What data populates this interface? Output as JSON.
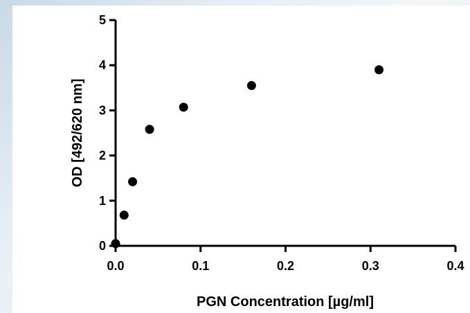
{
  "chart_data": {
    "type": "scatter",
    "title": "",
    "xlabel": "PGN Concentration [µg/ml]",
    "ylabel": "OD [492/620 nm]",
    "xlim": [
      0,
      0.4
    ],
    "ylim": [
      0,
      5
    ],
    "xticks": [
      "0.0",
      "0.1",
      "0.2",
      "0.3",
      "0.4"
    ],
    "yticks": [
      "0",
      "1",
      "2",
      "3",
      "4",
      "5"
    ],
    "grid": false,
    "series": [
      {
        "x": [
          0,
          0.01,
          0.02,
          0.04,
          0.08,
          0.16,
          0.31
        ],
        "y": [
          0.05,
          0.68,
          1.42,
          2.58,
          3.07,
          3.55,
          3.9
        ]
      }
    ],
    "colors": {
      "marker": "#000000",
      "axis": "#000000"
    }
  }
}
